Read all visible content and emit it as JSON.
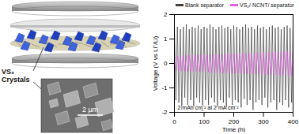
{
  "chart_data": {
    "type": "line",
    "x_label": "Time (h)",
    "y_label": "Voltage (V vs Li⁺/Li)",
    "annotations": [
      "2 mAh cm⁻² at 2 mA cm⁻²"
    ],
    "x": [
      0,
      5,
      10,
      15,
      20,
      25,
      30,
      35,
      40,
      45,
      50,
      55,
      60,
      65,
      70,
      75,
      80,
      85,
      90,
      95,
      100,
      105,
      110,
      115,
      120,
      125,
      130,
      135,
      140,
      145,
      150,
      155,
      160,
      165,
      170,
      175,
      180,
      185,
      190,
      195,
      200,
      205,
      210,
      215,
      220,
      225,
      230,
      235,
      240,
      245,
      250,
      255,
      260,
      265,
      270,
      275,
      280,
      285,
      290,
      295,
      300,
      305,
      310,
      315,
      320,
      325,
      330,
      335,
      340,
      345,
      350,
      355,
      360,
      365,
      370,
      375,
      380,
      385,
      390,
      395,
      400
    ],
    "series": [
      {
        "name": "Blank separator",
        "color": "#404040",
        "values": [
          1.45,
          -1.5,
          1.5,
          -1.6,
          1.4,
          -1.9,
          1.5,
          -1.4,
          1.6,
          -1.7,
          1.4,
          -1.5,
          1.5,
          -1.8,
          1.45,
          -1.4,
          1.55,
          -1.6,
          1.4,
          -1.95,
          1.5,
          -1.5,
          1.45,
          -1.7,
          1.6,
          -1.4,
          1.5,
          -1.6,
          1.4,
          -1.8,
          1.5,
          -1.5,
          1.55,
          -1.6,
          1.45,
          -1.9,
          1.5,
          -1.4,
          1.4,
          -1.7,
          1.55,
          -1.5,
          1.5,
          -1.6,
          1.4,
          -1.8,
          1.5,
          -1.45,
          1.6,
          -1.7,
          1.45,
          -1.5,
          1.5,
          -1.9,
          1.4,
          -1.6,
          1.55,
          -1.5,
          1.45,
          -1.7,
          1.5,
          -1.4,
          1.4,
          -1.8,
          1.5,
          -1.6,
          1.55,
          -1.5,
          1.45,
          -1.9,
          1.5,
          -1.6,
          1.4,
          -1.7,
          1.5,
          -1.5,
          1.55,
          -1.8,
          1.45,
          -1.6,
          1.5
        ]
      },
      {
        "name": "VS₂/ NCNT/ separator",
        "color": "#e060e0",
        "values": [
          0.3,
          -0.3,
          0.3,
          -0.3,
          0.32,
          -0.32,
          0.32,
          -0.32,
          0.33,
          -0.33,
          0.33,
          -0.33,
          0.34,
          -0.34,
          0.34,
          -0.34,
          0.35,
          -0.35,
          0.35,
          -0.35,
          0.36,
          -0.36,
          0.36,
          -0.36,
          0.37,
          -0.37,
          0.37,
          -0.37,
          0.38,
          -0.38,
          0.38,
          -0.38,
          0.39,
          -0.39,
          0.39,
          -0.39,
          0.4,
          -0.4,
          0.4,
          -0.4,
          0.41,
          -0.41,
          0.41,
          -0.41,
          0.42,
          -0.42,
          0.42,
          -0.42,
          0.43,
          -0.43,
          0.43,
          -0.43,
          0.44,
          -0.44,
          0.44,
          -0.44,
          0.45,
          -0.45,
          0.45,
          -0.45,
          0.46,
          -0.46,
          0.46,
          -0.46,
          0.47,
          -0.47,
          0.47,
          -0.47,
          0.48,
          -0.48,
          0.48,
          -0.48,
          0.49,
          -0.49,
          0.49,
          -0.49,
          0.5,
          -0.5,
          0.5,
          -0.5,
          0.5
        ]
      }
    ],
    "xlim": [
      0,
      400
    ],
    "xticks": [
      0,
      100,
      200,
      300,
      400
    ],
    "ylim": [
      -2,
      2
    ],
    "yticks": [
      -2,
      -1,
      0,
      1,
      2
    ],
    "grid": false,
    "legend": "top"
  },
  "illustration": {
    "label": "VS₂ Crystals",
    "scale_bar": "2 µm"
  }
}
